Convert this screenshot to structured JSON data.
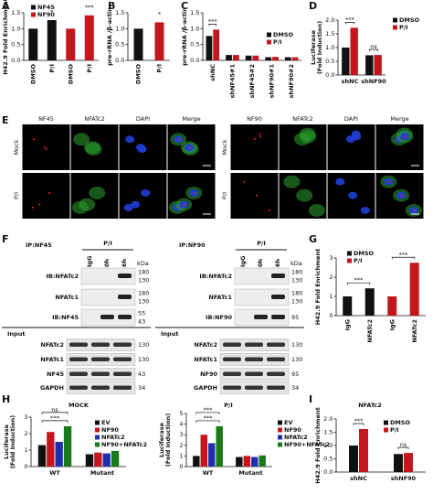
{
  "panel_letters": [
    "A",
    "B",
    "C",
    "D",
    "E",
    "F",
    "G",
    "H",
    "I"
  ],
  "chart_data": [
    {
      "type": "bar",
      "y_label": [
        "H42.9 Fold Enrichment"
      ],
      "categories": [
        "DMSO",
        "P/I",
        "DMSO",
        "P/I"
      ],
      "series": [
        {
          "name": "NF45",
          "color": "#111111",
          "values": [
            1.0,
            1.27,
            null,
            null
          ]
        },
        {
          "name": "NF90",
          "color": "#c4161c",
          "values": [
            null,
            null,
            1.0,
            1.42
          ]
        }
      ],
      "ylim": [
        0,
        1.5
      ],
      "yticks": [
        {
          "value": 0,
          "label": "0.0"
        },
        0.5,
        {
          "value": 1,
          "label": "1.0"
        },
        1.5
      ],
      "annotations": [
        "*",
        "***"
      ]
    },
    {
      "type": "bar",
      "y_label": [
        "pre-rRNA /β-actin"
      ],
      "categories": [
        "DMSO",
        "P/I"
      ],
      "series": [
        {
          "color": "#111111",
          "values": [
            1.0,
            null
          ]
        },
        {
          "color": "#c4161c",
          "values": [
            null,
            1.2
          ]
        }
      ],
      "ylim": [
        0,
        1.5
      ],
      "yticks": [
        {
          "value": 0,
          "label": "0.0"
        },
        0.5,
        {
          "value": 1,
          "label": "1.0"
        },
        1.5
      ],
      "annotations": [
        "*"
      ]
    },
    {
      "type": "bar",
      "y_label": [
        "pre-rRNA /β-actin"
      ],
      "categories": [
        "shNC",
        "shNF45#1",
        "shNF45#2",
        "shNF90#1",
        "shNF90#2"
      ],
      "series": [
        {
          "name": "DMSO",
          "color": "#111111",
          "values": [
            0.77,
            0.17,
            0.15,
            0.1,
            0.1
          ]
        },
        {
          "name": "P/I",
          "color": "#c4161c",
          "values": [
            0.97,
            0.17,
            0.15,
            0.11,
            0.1
          ]
        }
      ],
      "ylim": [
        0,
        1.5
      ],
      "yticks": [
        {
          "value": 0,
          "label": "0.0"
        },
        0.5,
        {
          "value": 1,
          "label": "1.0"
        },
        1.5
      ],
      "annotations": [
        "***"
      ]
    },
    {
      "type": "bar",
      "y_label": [
        "Luciferase",
        "(Fold Induction)"
      ],
      "categories": [
        "shNC",
        "shNF90"
      ],
      "series": [
        {
          "name": "DMSO",
          "color": "#111111",
          "values": [
            1.0,
            0.72
          ]
        },
        {
          "name": "P/I",
          "color": "#c4161c",
          "values": [
            1.72,
            0.73
          ]
        }
      ],
      "ylim": [
        0,
        2
      ],
      "yticks": [
        {
          "value": 0,
          "label": "0.0"
        },
        0.5,
        {
          "value": 1,
          "label": "1.0"
        },
        1.5,
        {
          "value": 2,
          "label": "2.0"
        }
      ],
      "annotations": [
        "***",
        "ns"
      ]
    },
    {
      "type": "bar",
      "y_label": [
        "H42.9 Fold Enrichment"
      ],
      "categories": [
        "IgG",
        "NFATc2",
        "IgG",
        "NFATc2"
      ],
      "series": [
        {
          "name": "DMSO",
          "color": "#111111",
          "values": [
            1.0,
            1.42,
            null,
            null
          ]
        },
        {
          "name": "P/I",
          "color": "#c4161c",
          "values": [
            null,
            null,
            1.0,
            2.75
          ]
        }
      ],
      "ylim": [
        0,
        3
      ],
      "yticks": [
        0,
        1,
        2,
        3
      ],
      "annotations": [
        "***",
        "***"
      ]
    },
    {
      "type": "bar",
      "title": "MOCK",
      "y_label": [
        "Luciferase",
        "(Fold Induction)"
      ],
      "categories": [
        "WT",
        "Mutant"
      ],
      "series": [
        {
          "name": "EV",
          "color": "#111111",
          "values": [
            1.3,
            0.75
          ]
        },
        {
          "name": "NF90",
          "color": "#c4161c",
          "values": [
            2.1,
            0.85
          ]
        },
        {
          "name": "NFATc2",
          "color": "#1f2fb0",
          "values": [
            1.5,
            0.8
          ]
        },
        {
          "name": "NF90+NFATc2",
          "color": "#1a7a1a",
          "values": [
            2.45,
            0.95
          ]
        }
      ],
      "ylim": [
        0,
        3
      ],
      "yticks": [
        0,
        1,
        2,
        3
      ],
      "annotations": [
        "***",
        "ns"
      ]
    },
    {
      "type": "bar",
      "title": "P/I",
      "y_label": [
        "Luciferase",
        "(Fold Induction)"
      ],
      "categories": [
        "WT",
        "Mutant"
      ],
      "series": [
        {
          "name": "EV",
          "color": "#111111",
          "values": [
            1.0,
            0.9
          ]
        },
        {
          "name": "NF90",
          "color": "#c4161c",
          "values": [
            3.0,
            1.0
          ]
        },
        {
          "name": "NFATc2",
          "color": "#1f2fb0",
          "values": [
            2.2,
            0.9
          ]
        },
        {
          "name": "NF90+NFATc2",
          "color": "#1a7a1a",
          "values": [
            3.8,
            1.05
          ]
        }
      ],
      "ylim": [
        0,
        5
      ],
      "yticks": [
        0,
        1,
        2,
        3,
        4,
        5
      ],
      "annotations": [
        "***",
        "***"
      ]
    },
    {
      "type": "bar",
      "title": "NFATc2",
      "y_label": [
        "H42.9 Fold Enrichment"
      ],
      "categories": [
        "shNC",
        "shNF90"
      ],
      "series": [
        {
          "name": "DMSO",
          "color": "#111111",
          "values": [
            1.0,
            0.68
          ]
        },
        {
          "name": "P/I",
          "color": "#c4161c",
          "values": [
            1.62,
            0.72
          ]
        }
      ],
      "ylim": [
        0,
        2
      ],
      "yticks": [
        {
          "value": 0,
          "label": "0.0"
        },
        0.5,
        {
          "value": 1,
          "label": "1.0"
        },
        1.5,
        {
          "value": 2,
          "label": "2.0"
        }
      ],
      "annotations": [
        "***",
        "ns"
      ]
    }
  ],
  "figure_e": {
    "groups": [
      {
        "channels": [
          {
            "label": "NF45",
            "color": "#e8231f"
          },
          {
            "label": "NFATc2",
            "color": "#2ca02c"
          },
          {
            "label": "DAPI",
            "color": "#1f3fd8"
          },
          {
            "label": "Merge",
            "color": "#111111"
          }
        ],
        "rows": [
          "Mock",
          "P/I"
        ]
      },
      {
        "channels": [
          {
            "label": "NF90",
            "color": "#e8231f"
          },
          {
            "label": "NFATc2",
            "color": "#2ca02c"
          },
          {
            "label": "DAPI",
            "color": "#1f3fd8"
          },
          {
            "label": "Merge",
            "color": "#111111"
          }
        ],
        "rows": [
          "Mock",
          "P/I"
        ]
      }
    ]
  },
  "figure_f": {
    "blots": [
      {
        "ip": "IP:NF45",
        "treatment": "P/I",
        "lanes": [
          "IgG",
          "0h",
          "6h"
        ],
        "kda": "kDa",
        "ip_rows": [
          {
            "label": "IB:NFATc2",
            "markers": [
              "180",
              "130"
            ]
          },
          {
            "label": "NFATc1",
            "markers": [
              "180",
              "130"
            ]
          },
          {
            "label": "IB:NF45",
            "markers": [
              "55",
              "43"
            ]
          }
        ],
        "input_label": "Input",
        "input_rows": [
          {
            "label": "NFATc2",
            "markers": [
              "130"
            ]
          },
          {
            "label": "NFATc1",
            "markers": [
              "130"
            ]
          },
          {
            "label": "NF45",
            "markers": [
              "43"
            ]
          },
          {
            "label": "GAPDH",
            "markers": [
              "34"
            ]
          }
        ]
      },
      {
        "ip": "IP:NF90",
        "treatment": "P/I",
        "lanes": [
          "IgG",
          "0h",
          "6h"
        ],
        "kda": "kDa",
        "ip_rows": [
          {
            "label": "IB:NFATc2",
            "markers": [
              "180",
              "130"
            ]
          },
          {
            "label": "NFATc1",
            "markers": [
              "180",
              "130"
            ]
          },
          {
            "label": "IB:NF90",
            "markers": [
              "95"
            ]
          }
        ],
        "input_label": "Input",
        "input_rows": [
          {
            "label": "NFATc2",
            "markers": [
              "130"
            ]
          },
          {
            "label": "NFATc1",
            "markers": [
              "130"
            ]
          },
          {
            "label": "NF90",
            "markers": [
              "95"
            ]
          },
          {
            "label": "GAPDH",
            "markers": [
              "34"
            ]
          }
        ]
      }
    ]
  }
}
